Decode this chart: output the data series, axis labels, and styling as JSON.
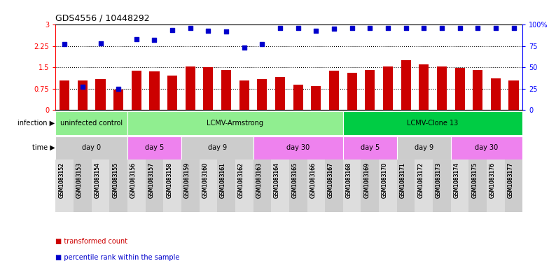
{
  "title": "GDS4556 / 10448292",
  "samples": [
    "GSM1083152",
    "GSM1083153",
    "GSM1083154",
    "GSM1083155",
    "GSM1083156",
    "GSM1083157",
    "GSM1083158",
    "GSM1083159",
    "GSM1083160",
    "GSM1083161",
    "GSM1083162",
    "GSM1083163",
    "GSM1083164",
    "GSM1083165",
    "GSM1083166",
    "GSM1083167",
    "GSM1083168",
    "GSM1083169",
    "GSM1083170",
    "GSM1083171",
    "GSM1083172",
    "GSM1083173",
    "GSM1083174",
    "GSM1083175",
    "GSM1083176",
    "GSM1083177"
  ],
  "transformed_count": [
    1.05,
    1.05,
    1.1,
    0.72,
    1.38,
    1.35,
    1.22,
    1.52,
    1.5,
    1.42,
    1.05,
    1.08,
    1.15,
    0.9,
    0.85,
    1.38,
    1.32,
    1.42,
    1.52,
    1.75,
    1.6,
    1.52,
    1.48,
    1.42,
    1.12,
    1.05
  ],
  "percentile_rank_pct": [
    77,
    27,
    78,
    25,
    83,
    82,
    94,
    96,
    93,
    92,
    73,
    77,
    96,
    96,
    93,
    95,
    96,
    96,
    96,
    96,
    96,
    96,
    96,
    96,
    96,
    96
  ],
  "bar_color": "#cc0000",
  "dot_color": "#0000cc",
  "ylim_left": [
    0,
    3
  ],
  "ylim_right": [
    0,
    100
  ],
  "yticks_left": [
    0,
    0.75,
    1.5,
    2.25,
    3
  ],
  "yticks_right": [
    0,
    25,
    50,
    75,
    100
  ],
  "hlines": [
    0.75,
    1.5,
    2.25
  ],
  "infection_groups": [
    {
      "label": "uninfected control",
      "start": 0,
      "end": 4,
      "color": "#90ee90"
    },
    {
      "label": "LCMV-Armstrong",
      "start": 4,
      "end": 16,
      "color": "#90ee90"
    },
    {
      "label": "LCMV-Clone 13",
      "start": 16,
      "end": 26,
      "color": "#00cc44"
    }
  ],
  "time_groups": [
    {
      "label": "day 0",
      "start": 0,
      "end": 4,
      "color": "#cccccc"
    },
    {
      "label": "day 5",
      "start": 4,
      "end": 7,
      "color": "#ee82ee"
    },
    {
      "label": "day 9",
      "start": 7,
      "end": 11,
      "color": "#cccccc"
    },
    {
      "label": "day 30",
      "start": 11,
      "end": 16,
      "color": "#ee82ee"
    },
    {
      "label": "day 5",
      "start": 16,
      "end": 19,
      "color": "#ee82ee"
    },
    {
      "label": "day 9",
      "start": 19,
      "end": 22,
      "color": "#cccccc"
    },
    {
      "label": "day 30",
      "start": 22,
      "end": 26,
      "color": "#ee82ee"
    }
  ],
  "legend_items": [
    {
      "label": "transformed count",
      "color": "#cc0000"
    },
    {
      "label": "percentile rank within the sample",
      "color": "#0000cc"
    }
  ],
  "background_color": "#ffffff",
  "infection_label": "infection",
  "time_label": "time"
}
